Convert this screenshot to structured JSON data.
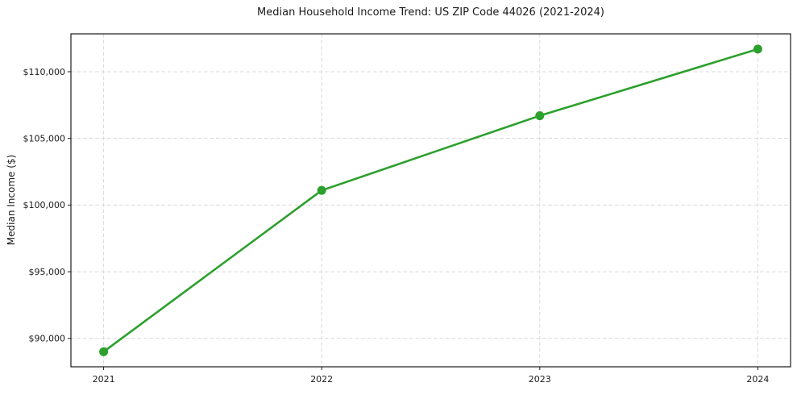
{
  "figure": {
    "background": "#ffffff"
  },
  "chart_data": {
    "type": "line",
    "title": "Median Household Income Trend: US ZIP Code 44026 (2021-2024)",
    "xlabel": "",
    "ylabel": "Median Income ($)",
    "x": [
      2021,
      2022,
      2023,
      2024
    ],
    "x_tick_labels": [
      "2021",
      "2022",
      "2023",
      "2024"
    ],
    "series": [
      {
        "name": "Median Household Income",
        "values": [
          89000,
          101100,
          106700,
          111700
        ],
        "color": "#2ca02c"
      }
    ],
    "y_ticks": [
      90000,
      95000,
      100000,
      105000,
      110000
    ],
    "y_tick_labels": [
      "$90,000",
      "$95,000",
      "$100,000",
      "$105,000",
      "$110,000"
    ],
    "xlim": [
      2020.85,
      2024.15
    ],
    "ylim": [
      87870,
      112840
    ],
    "grid": true,
    "grid_style": "dashed",
    "grid_color": "#d8d8d8",
    "axis_color": "#1a1a1a",
    "text_color": "#1a1a1a",
    "legend_position": "none",
    "line_width": 2.6,
    "marker": "circle",
    "marker_radius": 5.5
  }
}
